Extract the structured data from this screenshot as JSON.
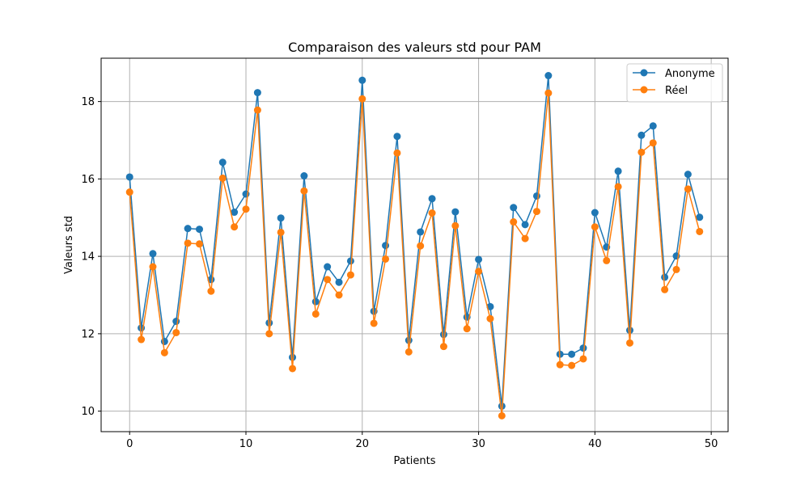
{
  "chart_data": {
    "type": "line",
    "title": "Comparaison des valeurs std pour PAM",
    "xlabel": "Patients",
    "ylabel": "Valeurs std",
    "xlim": [
      -2.45,
      51.45
    ],
    "ylim": [
      9.47,
      19.12
    ],
    "xticks": [
      0,
      10,
      20,
      30,
      40,
      50
    ],
    "yticks": [
      10,
      12,
      14,
      16,
      18
    ],
    "grid": true,
    "legend_position": "top-right",
    "x": [
      0,
      1,
      2,
      3,
      4,
      5,
      6,
      7,
      8,
      9,
      10,
      11,
      12,
      13,
      14,
      15,
      16,
      17,
      18,
      19,
      20,
      21,
      22,
      23,
      24,
      25,
      26,
      27,
      28,
      29,
      30,
      31,
      32,
      33,
      34,
      35,
      36,
      37,
      38,
      39,
      40,
      41,
      42,
      43,
      44,
      45,
      46,
      47,
      48,
      49
    ],
    "series": [
      {
        "name": "Anonyme",
        "color": "#1f77b4",
        "values": [
          16.05,
          12.15,
          14.07,
          11.8,
          12.32,
          14.72,
          14.7,
          13.4,
          16.43,
          15.14,
          15.61,
          18.23,
          12.28,
          14.99,
          11.39,
          16.08,
          12.83,
          13.73,
          13.33,
          13.88,
          18.55,
          12.58,
          14.28,
          17.1,
          11.83,
          14.63,
          15.49,
          11.98,
          15.15,
          12.43,
          13.92,
          12.7,
          10.13,
          15.26,
          14.82,
          15.56,
          18.67,
          11.47,
          11.47,
          11.63,
          15.13,
          14.24,
          16.2,
          12.09,
          17.13,
          17.37,
          13.46,
          14.01,
          16.12,
          15.01
        ]
      },
      {
        "name": "Réel",
        "color": "#ff7f0e",
        "values": [
          15.66,
          11.85,
          13.73,
          11.51,
          12.03,
          14.34,
          14.32,
          13.1,
          16.02,
          14.76,
          15.22,
          17.78,
          12.0,
          14.62,
          11.1,
          15.69,
          12.51,
          13.4,
          13.0,
          13.52,
          18.07,
          12.27,
          13.93,
          16.67,
          11.53,
          14.27,
          15.12,
          11.67,
          14.79,
          12.13,
          13.61,
          12.39,
          9.88,
          14.89,
          14.46,
          15.16,
          18.22,
          11.2,
          11.18,
          11.35,
          14.76,
          13.89,
          15.8,
          11.76,
          16.69,
          16.93,
          13.14,
          13.66,
          15.74,
          14.64
        ]
      }
    ]
  }
}
